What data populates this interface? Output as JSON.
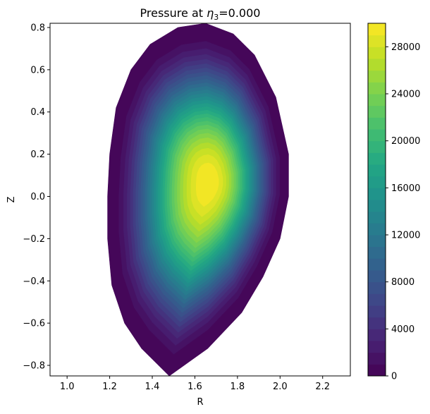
{
  "chart_data": {
    "type": "contour",
    "title_prefix": "Pressure at ",
    "title_symbol": "η",
    "title_subscript": "3",
    "title_suffix": "=0.000",
    "xlabel": "R",
    "ylabel": "Z",
    "xlim": [
      0.92,
      2.33
    ],
    "ylim": [
      -0.85,
      0.82
    ],
    "xticks": [
      {
        "v": 1.0,
        "label": "1.0"
      },
      {
        "v": 1.2,
        "label": "1.2"
      },
      {
        "v": 1.4,
        "label": "1.4"
      },
      {
        "v": 1.6,
        "label": "1.6"
      },
      {
        "v": 1.8,
        "label": "1.8"
      },
      {
        "v": 2.0,
        "label": "2.0"
      },
      {
        "v": 2.2,
        "label": "2.2"
      }
    ],
    "yticks": [
      {
        "v": -0.8,
        "label": "−0.8"
      },
      {
        "v": -0.6,
        "label": "−0.6"
      },
      {
        "v": -0.4,
        "label": "−0.4"
      },
      {
        "v": -0.2,
        "label": "−0.2"
      },
      {
        "v": 0.0,
        "label": "0.0"
      },
      {
        "v": 0.2,
        "label": "0.2"
      },
      {
        "v": 0.4,
        "label": "0.4"
      },
      {
        "v": 0.6,
        "label": "0.6"
      },
      {
        "v": 0.8,
        "label": "0.8"
      }
    ],
    "plasma": {
      "magnetic_axis": [
        1.665,
        0.065
      ],
      "peak_pressure": 30000,
      "boundary": [
        [
          1.48,
          -0.85
        ],
        [
          1.35,
          -0.72
        ],
        [
          1.27,
          -0.6
        ],
        [
          1.21,
          -0.42
        ],
        [
          1.19,
          -0.2
        ],
        [
          1.19,
          0.0
        ],
        [
          1.2,
          0.2
        ],
        [
          1.23,
          0.42
        ],
        [
          1.3,
          0.6
        ],
        [
          1.39,
          0.72
        ],
        [
          1.52,
          0.8
        ],
        [
          1.65,
          0.82
        ],
        [
          1.78,
          0.77
        ],
        [
          1.88,
          0.67
        ],
        [
          1.98,
          0.47
        ],
        [
          2.04,
          0.2
        ],
        [
          2.04,
          0.0
        ],
        [
          2.0,
          -0.2
        ],
        [
          1.92,
          -0.38
        ],
        [
          1.82,
          -0.55
        ],
        [
          1.66,
          -0.72
        ]
      ]
    },
    "colorbar": {
      "colormap": "viridis",
      "range": [
        0,
        30000
      ],
      "levels": 30,
      "ticks": [
        {
          "v": 0,
          "label": "0"
        },
        {
          "v": 4000,
          "label": "4000"
        },
        {
          "v": 8000,
          "label": "8000"
        },
        {
          "v": 12000,
          "label": "12000"
        },
        {
          "v": 16000,
          "label": "16000"
        },
        {
          "v": 20000,
          "label": "20000"
        },
        {
          "v": 24000,
          "label": "24000"
        },
        {
          "v": 28000,
          "label": "28000"
        }
      ]
    }
  }
}
